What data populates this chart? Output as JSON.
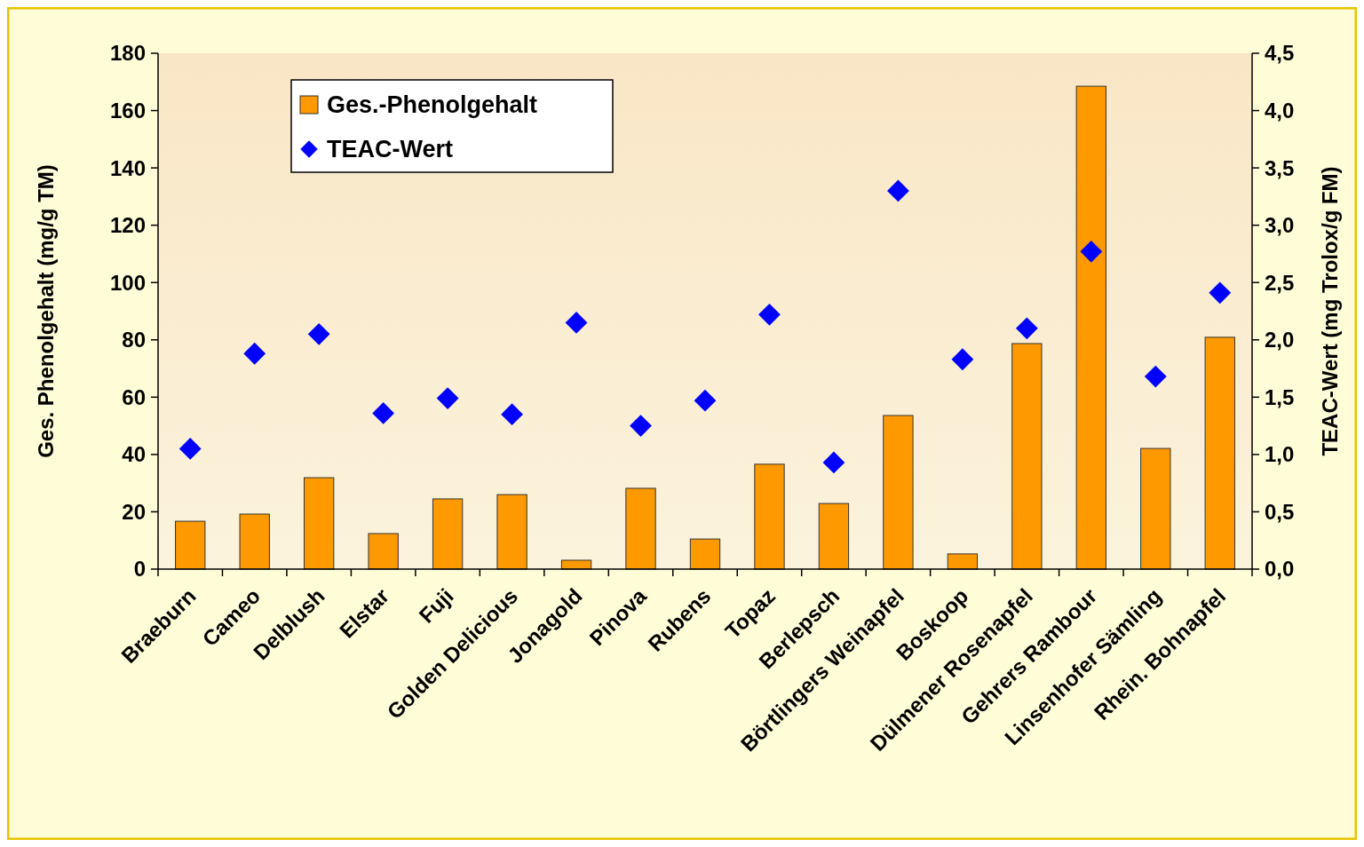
{
  "chart_data": {
    "type": "bar",
    "ylabel": "Ges. Phenolgehalt (mg/g TM)",
    "y2label": "TEAC-Wert (mg Trolox/g FM)",
    "categories": [
      "Braeburn",
      "Cameo",
      "Delblush",
      "Elstar",
      "Fuji",
      "Golden Delicious",
      "Jonagold",
      "Pinova",
      "Rubens",
      "Topaz",
      "Berlepsch",
      "Börtlingers Weinapfel",
      "Boskoop",
      "Dülmener Rosenapfel",
      "Gehrers Rambour",
      "Linsenhofer Sämling",
      "Rhein. Bohnapfel"
    ],
    "series": [
      {
        "name": "Ges.-Phenolgehalt",
        "color": "#ff9900",
        "values": [
          16.7,
          19.2,
          31.9,
          12.4,
          24.5,
          26.0,
          3.1,
          28.2,
          10.5,
          36.6,
          22.9,
          53.6,
          5.3,
          78.7,
          168.5,
          42.1,
          80.9
        ]
      },
      {
        "name": "TEAC-Wert",
        "type": "scatter",
        "axis": "y2",
        "color": "#0000ff",
        "values": [
          1.05,
          1.88,
          2.05,
          1.36,
          1.49,
          1.35,
          2.15,
          1.25,
          1.47,
          2.22,
          0.93,
          3.3,
          1.83,
          2.1,
          2.77,
          1.68,
          2.41
        ]
      }
    ],
    "ylim": [
      0,
      180
    ],
    "yticks": [
      0,
      20,
      40,
      60,
      80,
      100,
      120,
      140,
      160,
      180
    ],
    "y2lim": [
      0,
      4.5
    ],
    "y2ticks": [
      {
        "value": 0,
        "label": "0,0"
      },
      {
        "value": 0.5,
        "label": "0,5"
      },
      {
        "value": 1,
        "label": "1,0"
      },
      {
        "value": 1.5,
        "label": "1,5"
      },
      {
        "value": 2,
        "label": "2,0"
      },
      {
        "value": 2.5,
        "label": "2,5"
      },
      {
        "value": 3,
        "label": "3,0"
      },
      {
        "value": 3.5,
        "label": "3,5"
      },
      {
        "value": 4,
        "label": "4,0"
      },
      {
        "value": 4.5,
        "label": "4,5"
      }
    ],
    "marker": "diamond",
    "legend": "top left",
    "grid": false
  }
}
